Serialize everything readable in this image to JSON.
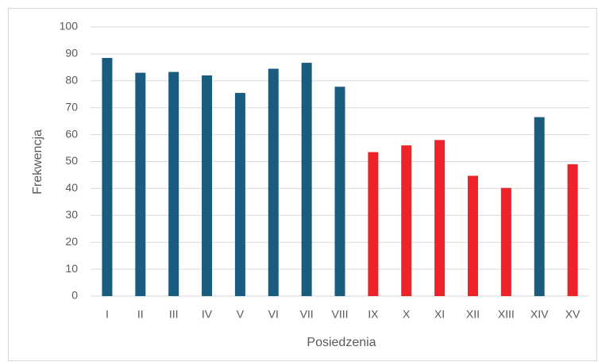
{
  "chart_data": {
    "type": "bar",
    "x_label": "Posiedzenia",
    "y_label": "Frekwencja",
    "categories": [
      "I",
      "II",
      "III",
      "IV",
      "V",
      "VI",
      "VII",
      "VIII",
      "IX",
      "X",
      "XI",
      "XII",
      "XIII",
      "XIV",
      "XV"
    ],
    "values": [
      88.5,
      83,
      83.3,
      82,
      75.5,
      84.5,
      86.7,
      77.8,
      53.5,
      56,
      58,
      44.7,
      40.2,
      66.5,
      49
    ],
    "colors": [
      "#1a5c7e",
      "#1a5c7e",
      "#1a5c7e",
      "#1a5c7e",
      "#1a5c7e",
      "#1a5c7e",
      "#1a5c7e",
      "#1a5c7e",
      "#ee2229",
      "#ee2229",
      "#ee2229",
      "#ee2229",
      "#ee2229",
      "#1a5c7e",
      "#ee2229"
    ],
    "ylim": [
      0,
      100
    ],
    "yticks": [
      0,
      10,
      20,
      30,
      40,
      50,
      60,
      70,
      80,
      90,
      100
    ],
    "grid": true
  }
}
